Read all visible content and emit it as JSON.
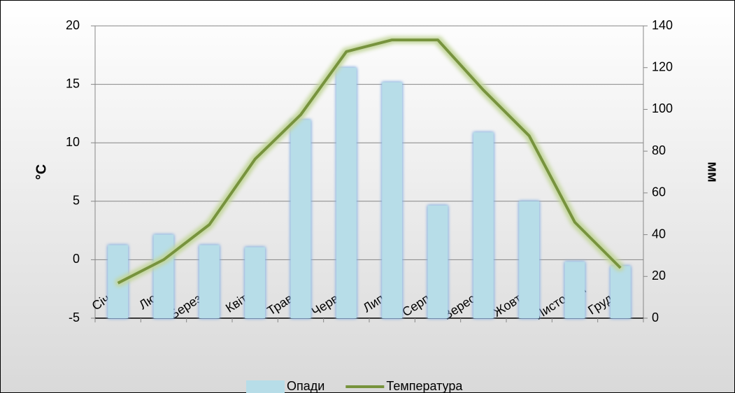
{
  "chart_data": {
    "type": "bar",
    "categories": [
      "Січень",
      "Лютий",
      "Березень",
      "Квітень",
      "Травень",
      "Червень",
      "Липень",
      "Серпень",
      "Вересень",
      "Жовтень",
      "Листопад",
      "Грудень"
    ],
    "series": [
      {
        "name": "Опади",
        "type": "bar",
        "axis": "y2",
        "color": "#b7dde8",
        "values": [
          35,
          40,
          35,
          34,
          95,
          120,
          113,
          54,
          89,
          56,
          27,
          25
        ]
      },
      {
        "name": "Температура",
        "type": "line",
        "axis": "y",
        "color": "#77933c",
        "values": [
          -2.0,
          0,
          3.0,
          8.6,
          12.4,
          17.8,
          18.8,
          18.8,
          14.5,
          10.6,
          3.2,
          -0.7
        ]
      }
    ],
    "ylabel": "°C",
    "y2label": "мм",
    "ylim": [
      -5,
      20
    ],
    "yticks": [
      -5,
      0,
      5,
      10,
      15,
      20
    ],
    "y2lim": [
      0,
      140
    ],
    "y2ticks": [
      0,
      20,
      40,
      60,
      80,
      100,
      120,
      140
    ],
    "grid": true,
    "legend": "bottom"
  }
}
